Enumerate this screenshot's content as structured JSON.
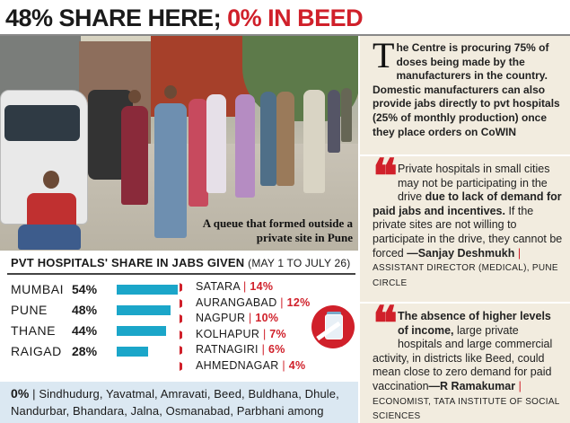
{
  "headline": {
    "part1": "48% SHARE HERE; ",
    "part2": "0% IN BEED"
  },
  "photo": {
    "caption": "A queue that formed outside a private site in Pune"
  },
  "chart": {
    "title": "PVT HOSPITALS' SHARE IN JABS GIVEN",
    "subtitle": "(MAY 1 TO JULY 26)"
  },
  "chart_data": {
    "type": "bar",
    "title": "PVT HOSPITALS' SHARE IN JABS GIVEN (MAY 1 TO JULY 26)",
    "categories": [
      "MUMBAI",
      "PUNE",
      "THANE",
      "RAIGAD"
    ],
    "values": [
      54,
      48,
      44,
      28
    ],
    "value_labels": [
      "54%",
      "48%",
      "44%",
      "28%"
    ],
    "xlabel": "",
    "ylabel": "",
    "bar_color": "#1ba6c9",
    "others": [
      {
        "name": "SATARA",
        "value": "14%"
      },
      {
        "name": "AURANGABAD",
        "value": "12%"
      },
      {
        "name": "NAGPUR",
        "value": "10%"
      },
      {
        "name": "KOLHAPUR",
        "value": "7%"
      },
      {
        "name": "RATNAGIRI",
        "value": "6%"
      },
      {
        "name": "AHMEDNAGAR",
        "value": "4%"
      }
    ]
  },
  "footer": {
    "zero": "0%",
    "sep": " | ",
    "districts": "Sindhudurg, Yavatmal, Amravati, Beed, Buldhana, Dhule, Nandurbar, Bhandara, Jalna, Osmanabad, Parbhani among others"
  },
  "sidebar": {
    "lead_dropcap": "T",
    "lead_text": "he Centre is procuring 75% of doses being made by the manufacturers in the country. Domestic manufacturers can also provide jabs directly to pvt hospitals (25% of monthly production) once they place orders on CoWIN",
    "quote_mark": "❝",
    "quote1": {
      "text_a": "Private hospitals in small cities may not be participating in the drive ",
      "text_bold": "due to lack of demand for paid jabs and incentives.",
      "text_b": " If the private sites are not willing to participate in the drive, they cannot be forced ",
      "who": "—Sanjay Deshmukh",
      "sep": " | ",
      "role": "ASSISTANT DIRECTOR (MEDICAL), PUNE CIRCLE"
    },
    "quote2": {
      "text_bold": "The absence of higher levels of income,",
      "text_a": " large private hospitals and large commercial activity, in districts like Beed, could mean close to zero demand for paid vaccination",
      "who": "—R Ramakumar",
      "sep": " | ",
      "role": "ECONOMIST, TATA INSTITUTE OF SOCIAL SCIENCES"
    }
  },
  "colors": {
    "accent_red": "#d0202a",
    "bar_blue": "#1ba6c9",
    "sidebar_bg": "#f2ecdf",
    "footer_bg": "#dbe8f2"
  }
}
